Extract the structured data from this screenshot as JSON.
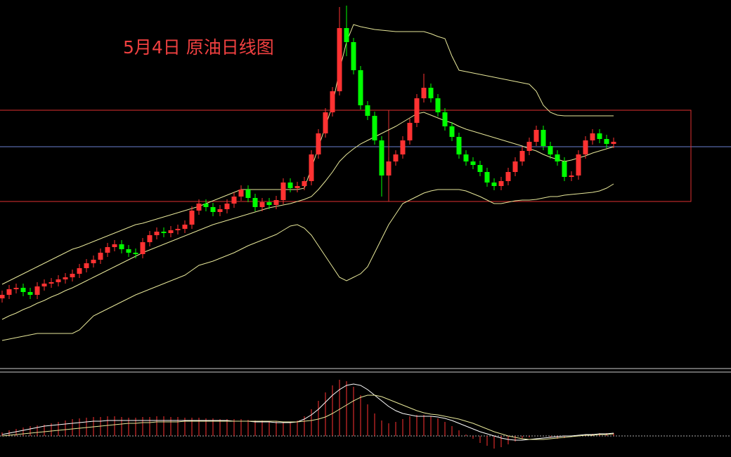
{
  "chart_data": [
    {
      "type": "candlestick",
      "title": "5月4日 原油日线图",
      "up_color": "#ff3232",
      "down_color": "#00ff00",
      "band_color": "#e8e89a",
      "ylim": [
        0,
        520
      ],
      "open": [
        95,
        100,
        108,
        110,
        104,
        100,
        112,
        116,
        118,
        122,
        125,
        130,
        138,
        145,
        150,
        160,
        168,
        172,
        165,
        160,
        158,
        175,
        185,
        190,
        188,
        192,
        194,
        200,
        220,
        230,
        225,
        218,
        222,
        230,
        240,
        250,
        238,
        225,
        232,
        228,
        235,
        260,
        252,
        255,
        262,
        300,
        330,
        360,
        390,
        480,
        460,
        420,
        370,
        355,
        320,
        270,
        290,
        300,
        320,
        345,
        380,
        395,
        380,
        360,
        340,
        325,
        300,
        290,
        285,
        275,
        260,
        255,
        262,
        275,
        290,
        305,
        318,
        335,
        312,
        300,
        290,
        268,
        270,
        300,
        320,
        330,
        322,
        315
      ],
      "high": [
        106,
        114,
        116,
        116,
        110,
        118,
        122,
        124,
        128,
        131,
        136,
        144,
        151,
        156,
        166,
        174,
        178,
        178,
        171,
        166,
        181,
        191,
        196,
        196,
        198,
        200,
        206,
        226,
        236,
        236,
        231,
        228,
        236,
        246,
        256,
        256,
        244,
        238,
        238,
        241,
        266,
        266,
        261,
        268,
        306,
        336,
        366,
        396,
        510,
        512,
        466,
        426,
        376,
        361,
        326,
        296,
        306,
        326,
        351,
        386,
        415,
        401,
        386,
        366,
        346,
        331,
        306,
        296,
        291,
        281,
        266,
        268,
        281,
        296,
        311,
        324,
        341,
        341,
        318,
        306,
        296,
        276,
        306,
        326,
        336,
        336,
        328,
        324
      ],
      "low": [
        89,
        94,
        102,
        98,
        94,
        94,
        106,
        110,
        112,
        116,
        119,
        124,
        132,
        139,
        144,
        154,
        162,
        159,
        154,
        152,
        152,
        169,
        179,
        182,
        182,
        186,
        188,
        194,
        214,
        219,
        212,
        212,
        216,
        224,
        234,
        232,
        219,
        219,
        222,
        222,
        229,
        246,
        246,
        249,
        256,
        294,
        324,
        354,
        384,
        440,
        414,
        364,
        349,
        314,
        240,
        264,
        284,
        294,
        314,
        339,
        374,
        374,
        354,
        334,
        319,
        294,
        284,
        279,
        269,
        254,
        249,
        249,
        256,
        269,
        284,
        299,
        312,
        306,
        294,
        284,
        262,
        262,
        264,
        294,
        314,
        316,
        309,
        309
      ],
      "close": [
        100,
        108,
        110,
        104,
        100,
        112,
        116,
        118,
        122,
        125,
        130,
        138,
        145,
        150,
        160,
        168,
        172,
        165,
        160,
        158,
        175,
        185,
        190,
        188,
        192,
        194,
        200,
        220,
        230,
        225,
        218,
        222,
        230,
        240,
        250,
        238,
        225,
        232,
        228,
        235,
        260,
        252,
        255,
        262,
        300,
        330,
        360,
        390,
        480,
        460,
        420,
        370,
        355,
        320,
        270,
        290,
        300,
        320,
        345,
        380,
        395,
        380,
        360,
        340,
        325,
        300,
        290,
        285,
        275,
        260,
        255,
        262,
        275,
        290,
        305,
        318,
        335,
        312,
        300,
        290,
        268,
        270,
        300,
        320,
        330,
        322,
        315,
        318
      ],
      "bands": {
        "upper": [
          115,
          120,
          125,
          130,
          135,
          140,
          145,
          150,
          155,
          160,
          165,
          168,
          172,
          176,
          180,
          184,
          188,
          192,
          196,
          200,
          202,
          205,
          208,
          211,
          214,
          217,
          220,
          223,
          226,
          230,
          234,
          238,
          242,
          246,
          250,
          250,
          250,
          250,
          250,
          250,
          250,
          250,
          250,
          252,
          280,
          310,
          340,
          370,
          420,
          460,
          485,
          482,
          480,
          478,
          477,
          476,
          475,
          475,
          475,
          475,
          475,
          472,
          468,
          465,
          440,
          420,
          418,
          416,
          414,
          412,
          410,
          408,
          406,
          404,
          402,
          400,
          390,
          370,
          360,
          356,
          355,
          355,
          355,
          355,
          355,
          355,
          355,
          355
        ],
        "middle": [
          65,
          70,
          74,
          79,
          83,
          88,
          92,
          97,
          101,
          106,
          110,
          115,
          120,
          125,
          130,
          135,
          140,
          145,
          150,
          155,
          160,
          164,
          168,
          172,
          176,
          180,
          184,
          188,
          192,
          196,
          200,
          203,
          206,
          209,
          212,
          215,
          218,
          221,
          224,
          226,
          228,
          230,
          233,
          236,
          240,
          250,
          262,
          275,
          290,
          300,
          308,
          315,
          320,
          325,
          330,
          335,
          340,
          346,
          352,
          358,
          360,
          356,
          352,
          348,
          345,
          340,
          336,
          333,
          330,
          327,
          324,
          321,
          318,
          315,
          312,
          308,
          305,
          300,
          296,
          293,
          290,
          292,
          295,
          298,
          302,
          305,
          308,
          311
        ],
        "lower": [
          35,
          37,
          39,
          41,
          43,
          45,
          45,
          45,
          45,
          45,
          45,
          50,
          60,
          70,
          75,
          80,
          85,
          90,
          95,
          100,
          104,
          108,
          112,
          116,
          120,
          124,
          128,
          135,
          142,
          145,
          148,
          152,
          156,
          160,
          165,
          170,
          174,
          178,
          182,
          186,
          192,
          198,
          200,
          195,
          185,
          170,
          155,
          140,
          125,
          120,
          125,
          130,
          140,
          160,
          180,
          200,
          215,
          230,
          235,
          240,
          245,
          248,
          250,
          250,
          250,
          250,
          248,
          244,
          240,
          235,
          230,
          230,
          232,
          234,
          235,
          235,
          236,
          238,
          240,
          240,
          242,
          243,
          244,
          245,
          246,
          248,
          252,
          258
        ]
      }
    },
    {
      "type": "macd",
      "hist_color": "#ff3232",
      "dif_color": "#ffffff",
      "dea_color": "#e8e89a",
      "ylim": [
        -30,
        90
      ],
      "histogram": [
        5,
        8,
        10,
        12,
        14,
        15,
        16,
        18,
        20,
        22,
        24,
        25,
        26,
        27,
        27,
        28,
        28,
        27,
        26,
        26,
        27,
        27,
        28,
        28,
        27,
        27,
        26,
        26,
        26,
        25,
        25,
        24,
        24,
        24,
        24,
        23,
        22,
        22,
        21,
        21,
        20,
        20,
        22,
        28,
        38,
        50,
        62,
        72,
        80,
        78,
        70,
        58,
        45,
        32,
        22,
        18,
        20,
        24,
        28,
        30,
        30,
        28,
        25,
        20,
        14,
        8,
        2,
        -4,
        -10,
        -14,
        -18,
        -16,
        -12,
        -8,
        -4,
        -2,
        0,
        0,
        -2,
        -4,
        -3,
        -1,
        1,
        2,
        3,
        4,
        4,
        4
      ],
      "dif": [
        2,
        4,
        6,
        8,
        10,
        12,
        14,
        15,
        16,
        17,
        18,
        19,
        20,
        21,
        21,
        22,
        22,
        22,
        22,
        22,
        22,
        22,
        22,
        22,
        22,
        22,
        22,
        22,
        22,
        22,
        22,
        22,
        22,
        21,
        21,
        21,
        20,
        20,
        20,
        19,
        19,
        19,
        20,
        24,
        30,
        38,
        48,
        58,
        66,
        72,
        74,
        72,
        66,
        58,
        50,
        42,
        36,
        32,
        30,
        28,
        28,
        28,
        27,
        25,
        22,
        18,
        14,
        10,
        6,
        3,
        0,
        -3,
        -5,
        -6,
        -6,
        -5,
        -4,
        -3,
        -2,
        -1,
        0,
        0,
        1,
        2,
        2,
        3,
        3,
        4
      ],
      "dea": [
        0,
        1,
        2,
        3,
        4,
        5,
        6,
        7,
        8,
        9,
        10,
        11,
        12,
        13,
        14,
        15,
        16,
        17,
        18,
        18,
        19,
        19,
        20,
        20,
        20,
        20,
        21,
        21,
        21,
        21,
        21,
        21,
        21,
        21,
        21,
        21,
        21,
        21,
        21,
        21,
        20,
        20,
        20,
        21,
        22,
        24,
        27,
        32,
        38,
        44,
        50,
        55,
        58,
        58,
        56,
        52,
        48,
        44,
        40,
        36,
        33,
        31,
        30,
        28,
        26,
        24,
        21,
        18,
        14,
        10,
        6,
        3,
        0,
        -2,
        -4,
        -5,
        -5,
        -5,
        -4,
        -3,
        -2,
        -1,
        0,
        1,
        1,
        2,
        2,
        3
      ]
    }
  ]
}
